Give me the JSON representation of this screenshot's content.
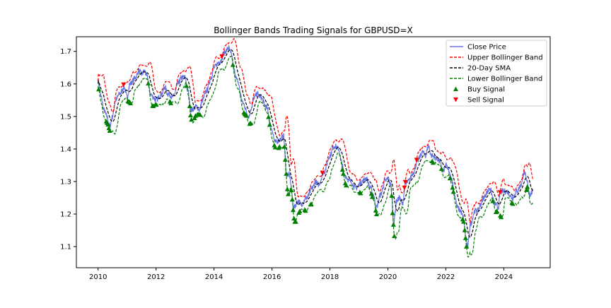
{
  "chart_data": {
    "type": "line",
    "title": "Bollinger Bands Trading Signals for GBPUSD=X",
    "xlabel": "",
    "ylabel": "",
    "x_ticks": [
      "2010",
      "2012",
      "2014",
      "2016",
      "2018",
      "2020",
      "2022",
      "2024"
    ],
    "y_ticks": [
      "1.1",
      "1.2",
      "1.3",
      "1.4",
      "1.5",
      "1.6",
      "1.7"
    ],
    "xlim": [
      2009.25,
      2025.6
    ],
    "ylim": [
      1.035,
      1.745
    ],
    "grid": false,
    "legend_position": "top-right",
    "legend": [
      {
        "label": "Close Price",
        "color": "#6674e6",
        "style": "solid"
      },
      {
        "label": "Upper Bollinger Band",
        "color": "#ff0000",
        "style": "dashed"
      },
      {
        "label": "20-Day SMA",
        "color": "#000000",
        "style": "dashed"
      },
      {
        "label": "Lower Bollinger Band",
        "color": "#008000",
        "style": "dashed"
      },
      {
        "label": "Buy Signal",
        "color": "#008000",
        "marker": "triangle-up"
      },
      {
        "label": "Sell Signal",
        "color": "#ff0000",
        "marker": "triangle-down"
      }
    ],
    "close_price": [
      [
        2010.0,
        1.61
      ],
      [
        2010.1,
        1.56
      ],
      [
        2010.2,
        1.52
      ],
      [
        2010.3,
        1.5
      ],
      [
        2010.4,
        1.47
      ],
      [
        2010.5,
        1.5
      ],
      [
        2010.6,
        1.55
      ],
      [
        2010.75,
        1.57
      ],
      [
        2010.9,
        1.59
      ],
      [
        2011.0,
        1.56
      ],
      [
        2011.1,
        1.6
      ],
      [
        2011.3,
        1.62
      ],
      [
        2011.4,
        1.64
      ],
      [
        2011.5,
        1.63
      ],
      [
        2011.6,
        1.64
      ],
      [
        2011.7,
        1.62
      ],
      [
        2011.8,
        1.57
      ],
      [
        2011.9,
        1.56
      ],
      [
        2012.0,
        1.55
      ],
      [
        2012.2,
        1.57
      ],
      [
        2012.3,
        1.59
      ],
      [
        2012.4,
        1.57
      ],
      [
        2012.6,
        1.56
      ],
      [
        2012.75,
        1.6
      ],
      [
        2012.9,
        1.62
      ],
      [
        2013.0,
        1.62
      ],
      [
        2013.1,
        1.58
      ],
      [
        2013.2,
        1.52
      ],
      [
        2013.4,
        1.53
      ],
      [
        2013.5,
        1.52
      ],
      [
        2013.6,
        1.55
      ],
      [
        2013.75,
        1.58
      ],
      [
        2013.9,
        1.62
      ],
      [
        2014.0,
        1.65
      ],
      [
        2014.2,
        1.67
      ],
      [
        2014.4,
        1.7
      ],
      [
        2014.5,
        1.71
      ],
      [
        2014.6,
        1.69
      ],
      [
        2014.7,
        1.64
      ],
      [
        2014.8,
        1.61
      ],
      [
        2015.0,
        1.54
      ],
      [
        2015.2,
        1.5
      ],
      [
        2015.3,
        1.53
      ],
      [
        2015.4,
        1.56
      ],
      [
        2015.5,
        1.57
      ],
      [
        2015.6,
        1.56
      ],
      [
        2015.8,
        1.53
      ],
      [
        2016.0,
        1.46
      ],
      [
        2016.1,
        1.42
      ],
      [
        2016.3,
        1.43
      ],
      [
        2016.4,
        1.44
      ],
      [
        2016.5,
        1.32
      ],
      [
        2016.6,
        1.32
      ],
      [
        2016.75,
        1.22
      ],
      [
        2016.9,
        1.24
      ],
      [
        2017.0,
        1.23
      ],
      [
        2017.2,
        1.25
      ],
      [
        2017.4,
        1.28
      ],
      [
        2017.5,
        1.3
      ],
      [
        2017.6,
        1.29
      ],
      [
        2017.8,
        1.33
      ],
      [
        2018.0,
        1.38
      ],
      [
        2018.15,
        1.41
      ],
      [
        2018.3,
        1.4
      ],
      [
        2018.4,
        1.36
      ],
      [
        2018.5,
        1.32
      ],
      [
        2018.7,
        1.3
      ],
      [
        2018.9,
        1.28
      ],
      [
        2019.1,
        1.3
      ],
      [
        2019.25,
        1.31
      ],
      [
        2019.4,
        1.28
      ],
      [
        2019.5,
        1.26
      ],
      [
        2019.6,
        1.22
      ],
      [
        2019.75,
        1.26
      ],
      [
        2019.9,
        1.3
      ],
      [
        2020.0,
        1.31
      ],
      [
        2020.1,
        1.29
      ],
      [
        2020.2,
        1.17
      ],
      [
        2020.3,
        1.24
      ],
      [
        2020.4,
        1.25
      ],
      [
        2020.5,
        1.23
      ],
      [
        2020.6,
        1.29
      ],
      [
        2020.7,
        1.3
      ],
      [
        2020.9,
        1.33
      ],
      [
        2021.0,
        1.36
      ],
      [
        2021.2,
        1.39
      ],
      [
        2021.3,
        1.38
      ],
      [
        2021.4,
        1.41
      ],
      [
        2021.5,
        1.38
      ],
      [
        2021.7,
        1.37
      ],
      [
        2021.8,
        1.36
      ],
      [
        2021.9,
        1.33
      ],
      [
        2022.0,
        1.35
      ],
      [
        2022.2,
        1.31
      ],
      [
        2022.3,
        1.26
      ],
      [
        2022.4,
        1.22
      ],
      [
        2022.5,
        1.21
      ],
      [
        2022.6,
        1.19
      ],
      [
        2022.7,
        1.12
      ],
      [
        2022.75,
        1.1
      ],
      [
        2022.85,
        1.17
      ],
      [
        2023.0,
        1.21
      ],
      [
        2023.1,
        1.21
      ],
      [
        2023.2,
        1.23
      ],
      [
        2023.3,
        1.25
      ],
      [
        2023.45,
        1.27
      ],
      [
        2023.5,
        1.28
      ],
      [
        2023.7,
        1.23
      ],
      [
        2023.8,
        1.22
      ],
      [
        2023.9,
        1.27
      ],
      [
        2024.1,
        1.27
      ],
      [
        2024.3,
        1.25
      ],
      [
        2024.45,
        1.27
      ],
      [
        2024.6,
        1.29
      ],
      [
        2024.7,
        1.33
      ],
      [
        2024.8,
        1.3
      ],
      [
        2024.9,
        1.26
      ],
      [
        2025.0,
        1.27
      ]
    ],
    "buy_signal_dates": [
      2010.0,
      2010.3,
      2010.35,
      2010.4,
      2011.05,
      2011.1,
      2011.9,
      2012.0,
      2012.5,
      2013.2,
      2013.35,
      2013.45,
      2013.5,
      2015.05,
      2015.1,
      2015.25,
      2016.1,
      2016.25,
      2016.45,
      2016.55,
      2016.75,
      2016.8,
      2016.95,
      2017.15,
      2017.35,
      2018.45,
      2018.55,
      2019.05,
      2019.45,
      2019.6,
      2020.15,
      2020.2,
      2021.55,
      2022.25,
      2022.6,
      2022.7,
      2023.75,
      2023.9,
      2024.3,
      2024.8
    ]
  },
  "colors": {
    "close": "#6674e6",
    "upper": "#ff0000",
    "sma": "#000000",
    "lower": "#008000",
    "buy": "#008000",
    "sell": "#ff0000"
  }
}
